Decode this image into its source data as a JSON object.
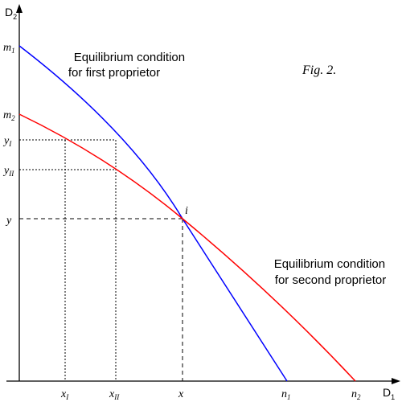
{
  "figure": {
    "caption": "Fig. 2.",
    "axes": {
      "x_label": "D",
      "x_label_sub": "1",
      "y_label": "D",
      "y_label_sub": "2"
    },
    "y_marks": [
      {
        "base": "m",
        "sub": "1"
      },
      {
        "base": "m",
        "sub": "2"
      },
      {
        "base": "y",
        "sub": "I"
      },
      {
        "base": "y",
        "sub": "II"
      },
      {
        "base": "y",
        "sub": ""
      }
    ],
    "x_marks": [
      {
        "base": "x",
        "sub": "I"
      },
      {
        "base": "x",
        "sub": "II"
      },
      {
        "base": "x",
        "sub": ""
      },
      {
        "base": "n",
        "sub": "1"
      },
      {
        "base": "n",
        "sub": "2"
      }
    ],
    "intersection_label": "i",
    "curve_first": {
      "label_line1": "Equilibrium condition",
      "label_line2": "for first proprietor",
      "color": "#0000ff"
    },
    "curve_second": {
      "label_line1": "Equilibrium condition",
      "label_line2": "for second proprietor",
      "color": "#ff0000"
    },
    "axis_color": "#000000"
  }
}
